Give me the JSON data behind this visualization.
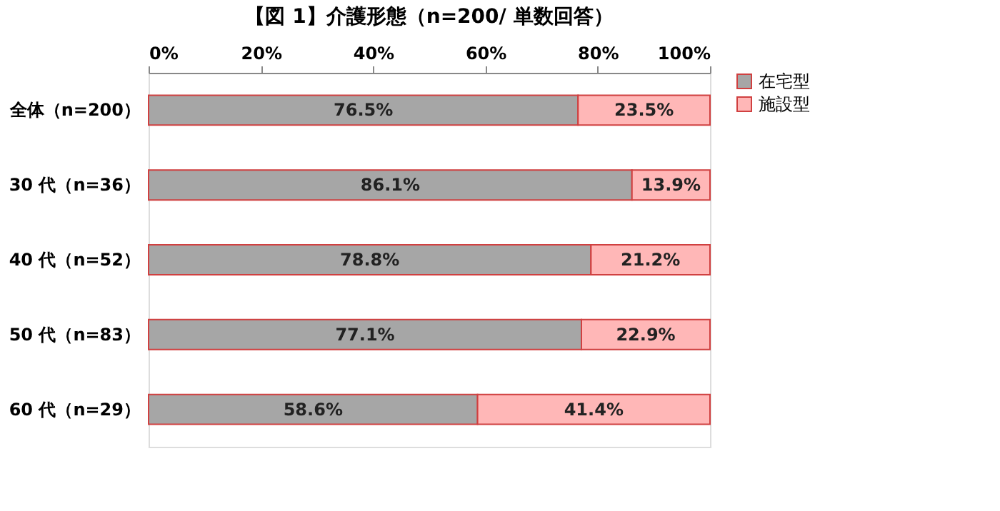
{
  "chart_data": {
    "type": "bar",
    "orientation": "horizontal",
    "stacked": true,
    "title": "【図 1】介護形態（n=200/ 単数回答）",
    "categories": [
      "全体（n=200）",
      "30 代（n=36）",
      "40 代（n=52）",
      "50 代（n=83）",
      "60 代（n=29）"
    ],
    "series": [
      {
        "name": "在宅型",
        "color": "#a6a6a6",
        "values": [
          76.5,
          86.1,
          78.8,
          77.1,
          58.6
        ],
        "value_labels": [
          "76.5%",
          "86.1%",
          "78.8%",
          "77.1%",
          "58.6%"
        ]
      },
      {
        "name": "施設型",
        "color": "#ffb7b7",
        "values": [
          23.5,
          13.9,
          21.2,
          22.9,
          41.4
        ],
        "value_labels": [
          "23.5%",
          "13.9%",
          "21.2%",
          "22.9%",
          "41.4%"
        ]
      }
    ],
    "xlim": [
      0,
      100
    ],
    "xticks": [
      {
        "value": 0,
        "label": "0%"
      },
      {
        "value": 20,
        "label": "20%"
      },
      {
        "value": 40,
        "label": "40%"
      },
      {
        "value": 60,
        "label": "60%"
      },
      {
        "value": 80,
        "label": "80%"
      },
      {
        "value": 100,
        "label": "100%"
      }
    ],
    "grid": false,
    "legend": "right"
  }
}
